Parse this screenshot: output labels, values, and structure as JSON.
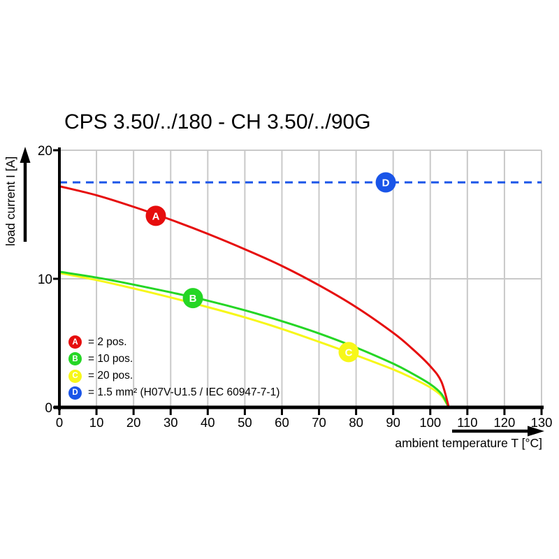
{
  "title": "CPS 3.50/../180 - CH 3.50/../90G",
  "x_axis": {
    "title": "ambient temperature T [°C]"
  },
  "y_axis": {
    "title": "load current I [A]"
  },
  "colors": {
    "red": "#e60d0d",
    "green": "#25d625",
    "yellow": "#f7f719",
    "blue": "#1a55e8",
    "grid": "#c9c9c9",
    "axis": "#000000"
  },
  "legend": {
    "items": [
      {
        "letter": "A",
        "color": "#e60d0d",
        "label": "= 2 pos."
      },
      {
        "letter": "B",
        "color": "#25d625",
        "label": "= 10 pos."
      },
      {
        "letter": "C",
        "color": "#f7f719",
        "label": "= 20 pos."
      },
      {
        "letter": "D",
        "color": "#1a55e8",
        "label": "= 1.5 mm² (H07V-U1.5 / IEC 60947-7-1)"
      }
    ]
  },
  "chart_data": {
    "type": "line",
    "title": "CPS 3.50/../180 - CH 3.50/../90G",
    "xlabel": "ambient temperature T [°C]",
    "ylabel": "load current I [A]",
    "xlim": [
      0,
      130
    ],
    "ylim": [
      0,
      20
    ],
    "x_ticks": [
      0,
      10,
      20,
      30,
      40,
      50,
      60,
      70,
      80,
      90,
      100,
      110,
      120,
      130
    ],
    "y_ticks": [
      0,
      10,
      20
    ],
    "grid": true,
    "legend_position": "lower-left-inside",
    "series": [
      {
        "name": "A",
        "label": "= 2 pos.",
        "color": "#e60d0d",
        "style": "solid",
        "points": [
          [
            0,
            17.2
          ],
          [
            10,
            16.5
          ],
          [
            20,
            15.6
          ],
          [
            30,
            14.6
          ],
          [
            40,
            13.5
          ],
          [
            50,
            12.3
          ],
          [
            60,
            11.0
          ],
          [
            70,
            9.5
          ],
          [
            80,
            7.8
          ],
          [
            90,
            5.8
          ],
          [
            95,
            4.6
          ],
          [
            100,
            3.2
          ],
          [
            103,
            2.0
          ],
          [
            105,
            0
          ]
        ]
      },
      {
        "name": "B",
        "label": "= 10 pos.",
        "color": "#25d625",
        "style": "solid",
        "points": [
          [
            0,
            10.55
          ],
          [
            10,
            10.1
          ],
          [
            20,
            9.55
          ],
          [
            30,
            8.95
          ],
          [
            40,
            8.3
          ],
          [
            50,
            7.55
          ],
          [
            60,
            6.7
          ],
          [
            70,
            5.75
          ],
          [
            80,
            4.65
          ],
          [
            90,
            3.4
          ],
          [
            95,
            2.65
          ],
          [
            100,
            1.8
          ],
          [
            103,
            1.05
          ],
          [
            105,
            0
          ]
        ]
      },
      {
        "name": "C",
        "label": "= 20 pos.",
        "color": "#f7f719",
        "style": "solid",
        "points": [
          [
            0,
            10.45
          ],
          [
            10,
            9.9
          ],
          [
            20,
            9.25
          ],
          [
            30,
            8.55
          ],
          [
            40,
            7.8
          ],
          [
            50,
            7.0
          ],
          [
            60,
            6.1
          ],
          [
            70,
            5.1
          ],
          [
            80,
            4.05
          ],
          [
            90,
            2.95
          ],
          [
            95,
            2.3
          ],
          [
            100,
            1.55
          ],
          [
            103,
            0.9
          ],
          [
            105,
            0
          ]
        ]
      },
      {
        "name": "D",
        "label": "= 1.5 mm² (H07V-U1.5 / IEC 60947-7-1)",
        "color": "#1a55e8",
        "style": "dashed",
        "points": [
          [
            0,
            17.5
          ],
          [
            130,
            17.5
          ]
        ]
      }
    ],
    "markers": [
      {
        "label": "A",
        "x": 26,
        "y": 14.9,
        "color": "#e60d0d"
      },
      {
        "label": "B",
        "x": 36,
        "y": 8.5,
        "color": "#25d625"
      },
      {
        "label": "C",
        "x": 78,
        "y": 4.3,
        "color": "#f7f719"
      },
      {
        "label": "D",
        "x": 88,
        "y": 17.5,
        "color": "#1a55e8"
      }
    ]
  }
}
